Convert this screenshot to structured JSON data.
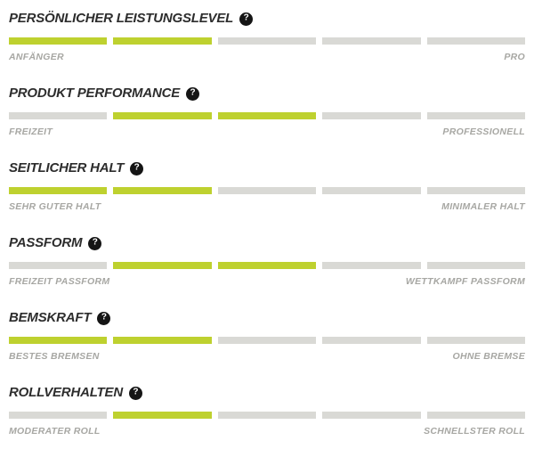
{
  "theme": {
    "accent_color": "#bed12f",
    "track_color": "#d9d9d5",
    "heading_color": "#2d2d2d",
    "label_color": "#a7a7a3",
    "help_badge_color": "#151515"
  },
  "help_icon_glyph": "?",
  "metrics": [
    {
      "title": "PERSÖNLICHER LEISTUNGSLEVEL",
      "left_label": "ANFÄNGER",
      "right_label": "PRO",
      "segments": [
        1,
        1,
        0,
        0,
        0
      ],
      "rating": "2/5"
    },
    {
      "title": "PRODUKT PERFORMANCE",
      "left_label": "FREIZEIT",
      "right_label": "PROFESSIONELL",
      "segments": [
        0,
        1,
        1,
        0,
        0
      ],
      "rating": "positions 2-3 of 5"
    },
    {
      "title": "SEITLICHER HALT",
      "left_label": "SEHR GUTER HALT",
      "right_label": "MINIMALER HALT",
      "segments": [
        1,
        1,
        0,
        0,
        0
      ],
      "rating": "2/5"
    },
    {
      "title": "PASSFORM",
      "left_label": "FREIZEIT PASSFORM",
      "right_label": "WETTKAMPF PASSFORM",
      "segments": [
        0,
        1,
        1,
        0,
        0
      ],
      "rating": "positions 2-3 of 5"
    },
    {
      "title": "BEMSKRAFT",
      "left_label": "BESTES BREMSEN",
      "right_label": "OHNE BREMSE",
      "segments": [
        1,
        1,
        0,
        0,
        0
      ],
      "rating": "2/5"
    },
    {
      "title": "ROLLVERHALTEN",
      "left_label": "MODERATER ROLL",
      "right_label": "SCHNELLSTER ROLL",
      "segments": [
        0,
        1,
        0,
        0,
        0
      ],
      "rating": "position 2 of 5"
    }
  ]
}
